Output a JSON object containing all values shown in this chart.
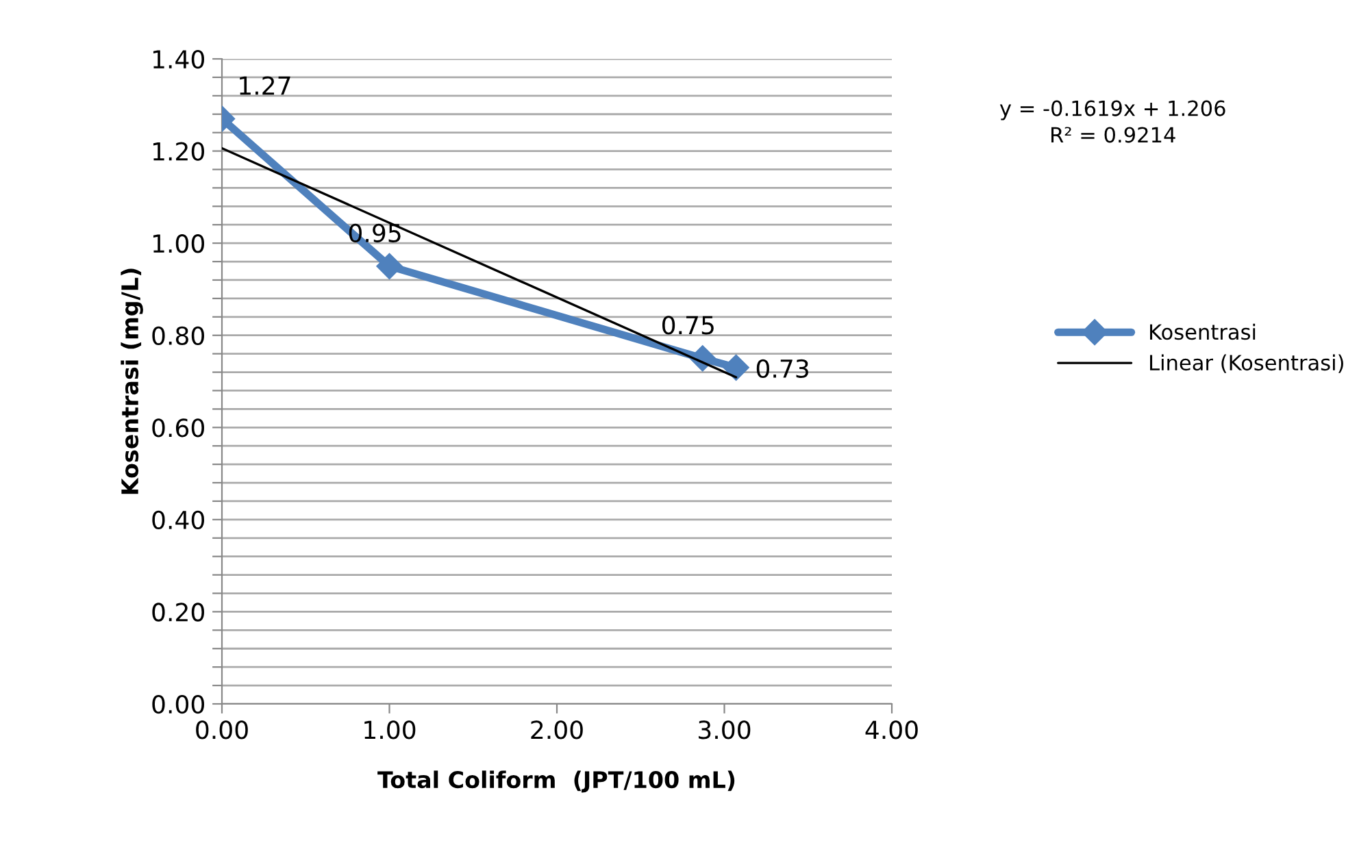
{
  "chart_data": {
    "type": "line",
    "xlabel": "Total Coliform  (JPT/100 mL)",
    "ylabel": "Kosentrasi (mg/L)",
    "series": [
      {
        "name": "Kosentrasi",
        "color": "#4f81bd",
        "x": [
          0.0,
          1.0,
          2.87,
          3.07
        ],
        "values": [
          1.27,
          0.95,
          0.75,
          0.73
        ],
        "marker": "diamond",
        "data_labels": true
      },
      {
        "name": "Linear (Kosentrasi)",
        "type": "line",
        "color": "#000000",
        "x": [
          0.0,
          3.07
        ],
        "values": [
          1.206,
          0.709
        ],
        "marker": "none"
      }
    ],
    "xlim": [
      0,
      4
    ],
    "xticks": [
      {
        "value": 0,
        "label": "0.00"
      },
      {
        "value": 1,
        "label": "1.00"
      },
      {
        "value": 2,
        "label": "2.00"
      },
      {
        "value": 3,
        "label": "3.00"
      },
      {
        "value": 4,
        "label": "4.00"
      }
    ],
    "ylim": [
      0,
      1.4
    ],
    "yticks": [
      {
        "value": 0,
        "label": "0.00"
      },
      {
        "value": 0.04,
        "label": null
      },
      {
        "value": 0.08,
        "label": null
      },
      {
        "value": 0.12,
        "label": null
      },
      {
        "value": 0.16,
        "label": null
      },
      {
        "value": 0.2,
        "label": "0.20"
      },
      {
        "value": 0.24,
        "label": null
      },
      {
        "value": 0.28,
        "label": null
      },
      {
        "value": 0.32,
        "label": null
      },
      {
        "value": 0.36,
        "label": null
      },
      {
        "value": 0.4,
        "label": "0.40"
      },
      {
        "value": 0.44,
        "label": null
      },
      {
        "value": 0.48,
        "label": null
      },
      {
        "value": 0.52,
        "label": null
      },
      {
        "value": 0.56,
        "label": null
      },
      {
        "value": 0.6,
        "label": "0.60"
      },
      {
        "value": 0.64,
        "label": null
      },
      {
        "value": 0.68,
        "label": null
      },
      {
        "value": 0.72,
        "label": null
      },
      {
        "value": 0.76,
        "label": null
      },
      {
        "value": 0.8,
        "label": "0.80"
      },
      {
        "value": 0.84,
        "label": null
      },
      {
        "value": 0.88,
        "label": null
      },
      {
        "value": 0.92,
        "label": null
      },
      {
        "value": 0.96,
        "label": null
      },
      {
        "value": 1.0,
        "label": "1.00"
      },
      {
        "value": 1.04,
        "label": null
      },
      {
        "value": 1.08,
        "label": null
      },
      {
        "value": 1.12,
        "label": null
      },
      {
        "value": 1.16,
        "label": null
      },
      {
        "value": 1.2,
        "label": "1.20"
      },
      {
        "value": 1.24,
        "label": null
      },
      {
        "value": 1.28,
        "label": null
      },
      {
        "value": 1.32,
        "label": null
      },
      {
        "value": 1.36,
        "label": null
      },
      {
        "value": 1.4,
        "label": "1.40"
      }
    ],
    "grid": "y",
    "legend": "right",
    "annotations": [
      "y = -0.1619x + 1.206\nR² = 0.9214"
    ]
  }
}
